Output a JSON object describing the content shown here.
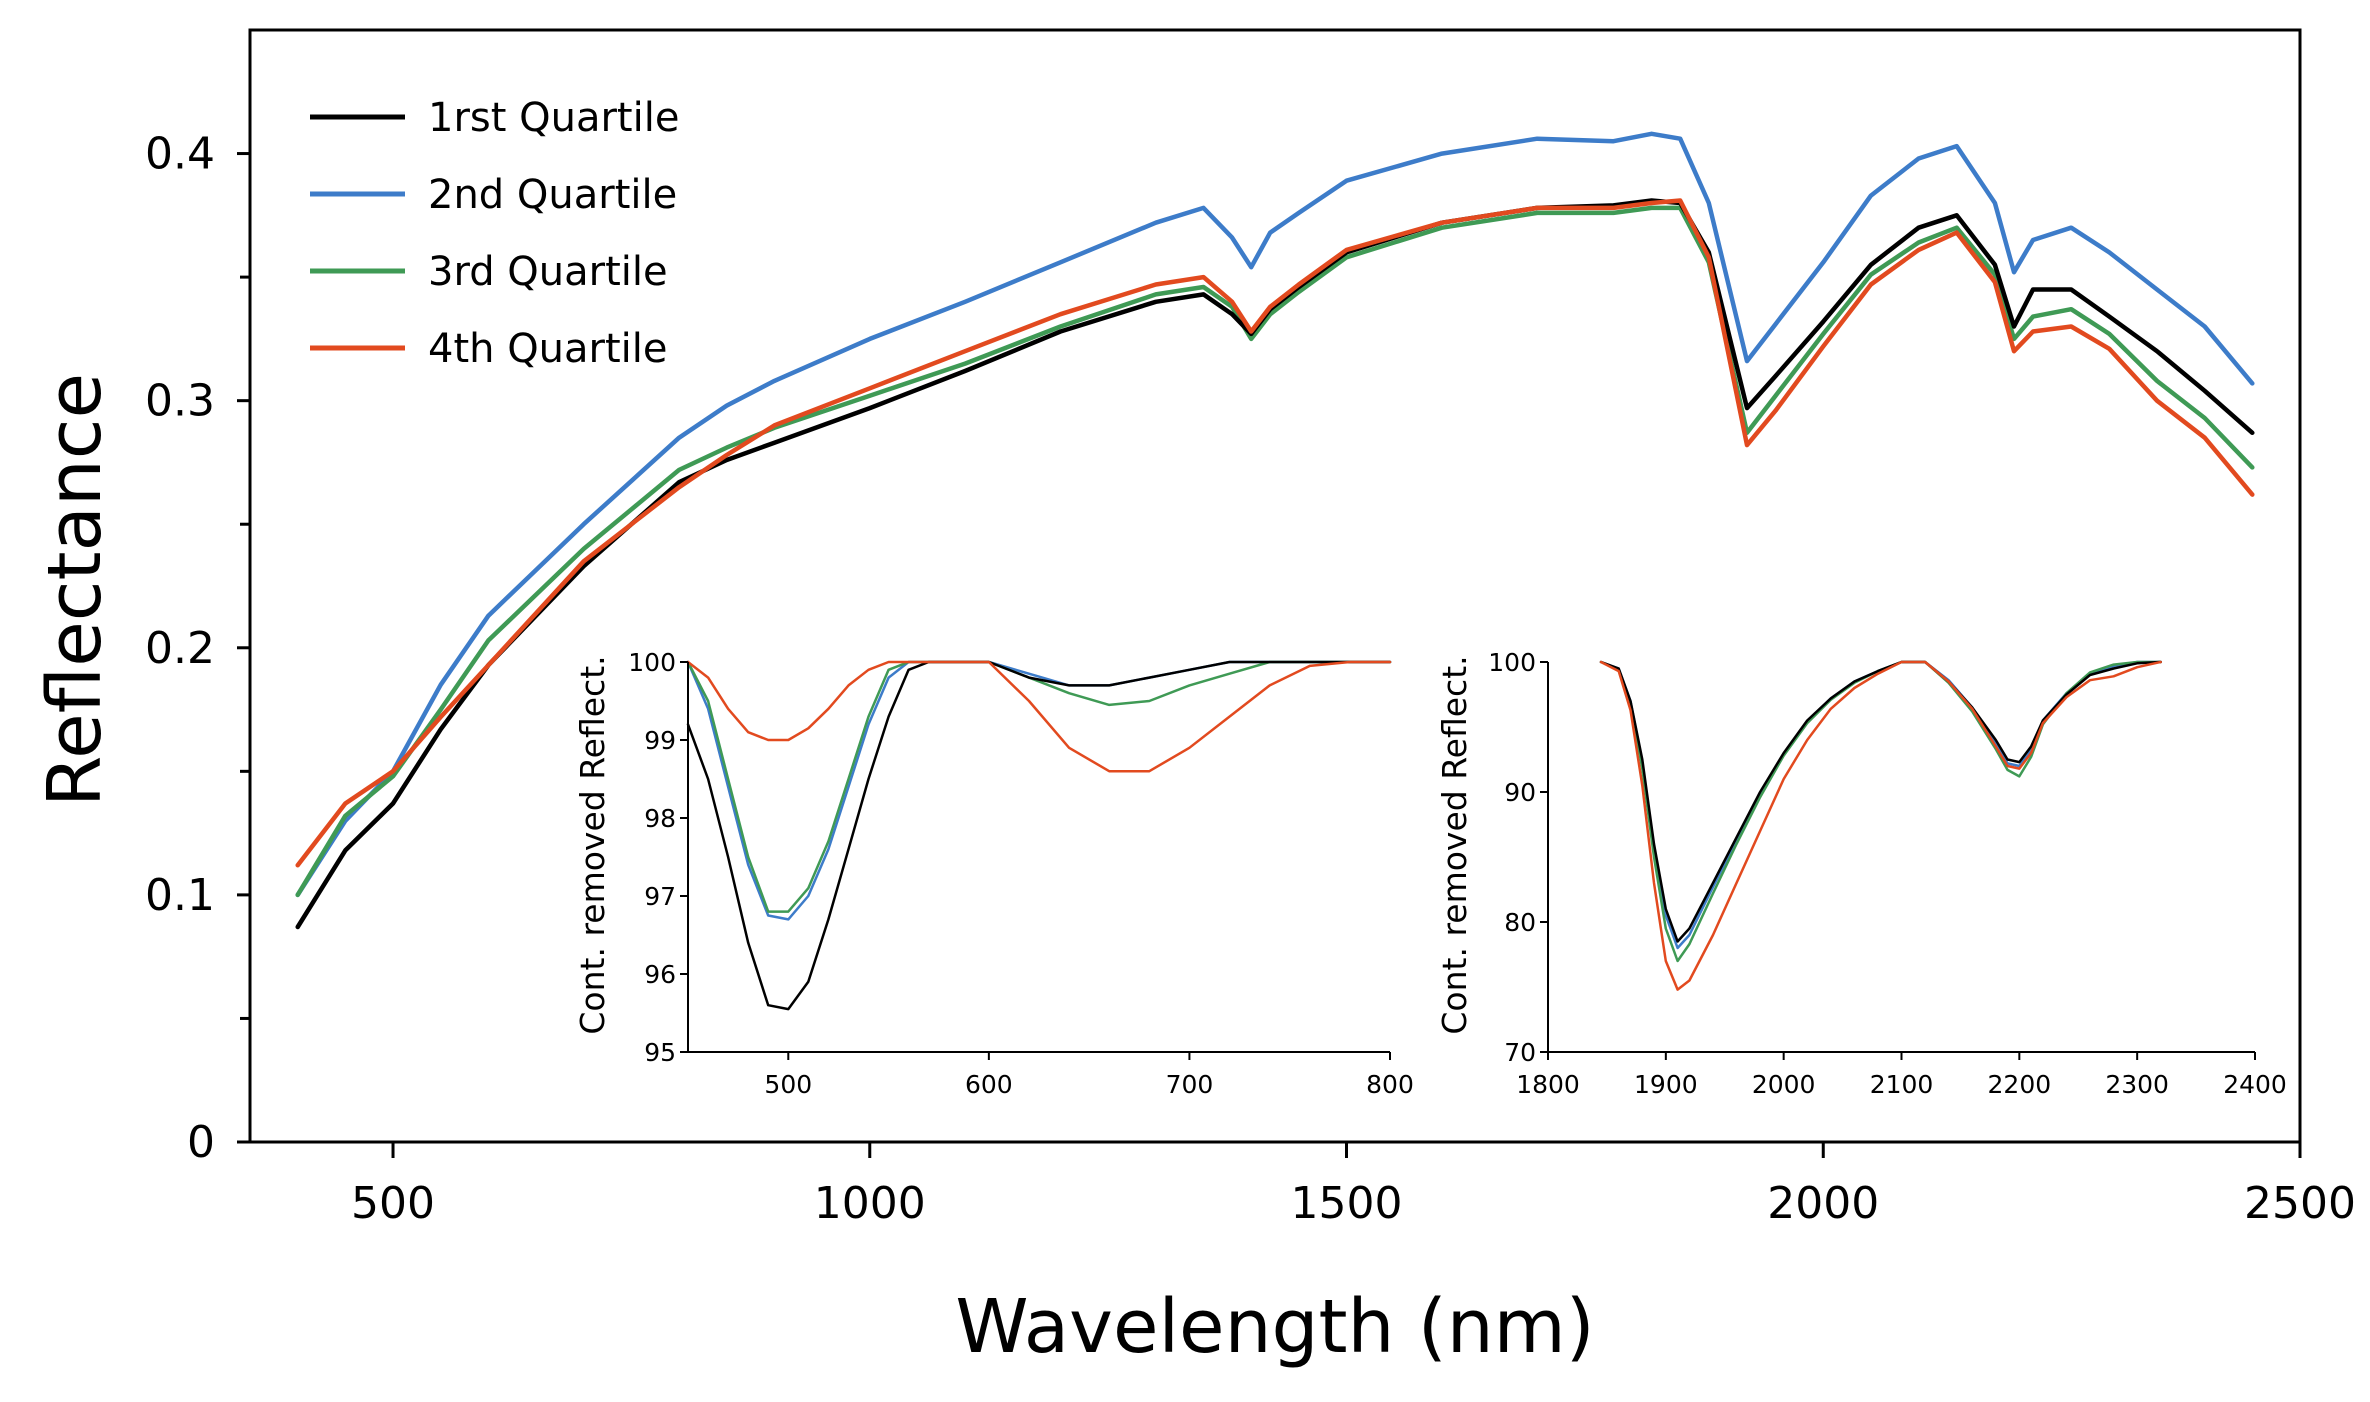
{
  "chart_data": [
    {
      "type": "line",
      "title": "",
      "xlabel": "Wavelength (nm)",
      "ylabel": "Reflectance",
      "xlim": [
        350,
        2500
      ],
      "ylim": [
        0,
        0.45
      ],
      "xticks": [
        "500",
        "1000",
        "1500",
        "2000",
        "2500"
      ],
      "yticks": [
        "0",
        "0.1",
        "0.2",
        "0.3",
        "0.4"
      ],
      "ytick_values": [
        0,
        0.1,
        0.2,
        0.3,
        0.4
      ],
      "ytick_minor": [
        0.05,
        0.15,
        0.25,
        0.35
      ],
      "legend_position": "top-left",
      "x": [
        400,
        450,
        500,
        550,
        600,
        700,
        800,
        850,
        900,
        1000,
        1100,
        1200,
        1300,
        1350,
        1380,
        1400,
        1420,
        1450,
        1500,
        1600,
        1700,
        1780,
        1820,
        1850,
        1880,
        1920,
        1950,
        2000,
        2050,
        2100,
        2140,
        2180,
        2200,
        2220,
        2260,
        2300,
        2350,
        2400,
        2450
      ],
      "series": [
        {
          "name": "1rst Quartile",
          "color": "#000000",
          "values": [
            0.087,
            0.118,
            0.137,
            0.167,
            0.193,
            0.233,
            0.267,
            0.276,
            0.283,
            0.297,
            0.312,
            0.328,
            0.34,
            0.343,
            0.335,
            0.327,
            0.337,
            0.346,
            0.36,
            0.372,
            0.378,
            0.379,
            0.381,
            0.38,
            0.36,
            0.297,
            0.31,
            0.332,
            0.355,
            0.37,
            0.375,
            0.355,
            0.33,
            0.345,
            0.345,
            0.334,
            0.32,
            0.304,
            0.287
          ]
        },
        {
          "name": "2nd Quartile",
          "color": "#3d7cc9",
          "values": [
            0.1,
            0.13,
            0.15,
            0.185,
            0.213,
            0.25,
            0.285,
            0.298,
            0.308,
            0.325,
            0.34,
            0.356,
            0.372,
            0.378,
            0.366,
            0.354,
            0.368,
            0.376,
            0.389,
            0.4,
            0.406,
            0.405,
            0.408,
            0.406,
            0.38,
            0.316,
            0.331,
            0.356,
            0.383,
            0.398,
            0.403,
            0.38,
            0.352,
            0.365,
            0.37,
            0.36,
            0.345,
            0.33,
            0.307
          ]
        },
        {
          "name": "3rd Quartile",
          "color": "#3f9a55",
          "values": [
            0.1,
            0.132,
            0.148,
            0.175,
            0.203,
            0.24,
            0.272,
            0.281,
            0.289,
            0.302,
            0.315,
            0.33,
            0.343,
            0.346,
            0.338,
            0.325,
            0.335,
            0.344,
            0.358,
            0.37,
            0.376,
            0.376,
            0.378,
            0.378,
            0.356,
            0.287,
            0.302,
            0.327,
            0.351,
            0.364,
            0.37,
            0.351,
            0.325,
            0.334,
            0.337,
            0.327,
            0.308,
            0.293,
            0.273
          ]
        },
        {
          "name": "4th Quartile",
          "color": "#e24a1f",
          "values": [
            0.112,
            0.137,
            0.15,
            0.172,
            0.193,
            0.235,
            0.265,
            0.278,
            0.29,
            0.305,
            0.32,
            0.335,
            0.347,
            0.35,
            0.34,
            0.328,
            0.338,
            0.347,
            0.361,
            0.372,
            0.378,
            0.378,
            0.38,
            0.381,
            0.358,
            0.282,
            0.296,
            0.322,
            0.347,
            0.361,
            0.368,
            0.348,
            0.32,
            0.328,
            0.33,
            0.321,
            0.3,
            0.285,
            0.262
          ]
        }
      ]
    },
    {
      "type": "line",
      "title": "",
      "xlabel": "",
      "ylabel": "Cont. removed Reflect.",
      "xlim": [
        450,
        800
      ],
      "ylim": [
        95,
        100
      ],
      "xticks": [
        "500",
        "600",
        "700",
        "800"
      ],
      "xtick_values": [
        500,
        600,
        700,
        800
      ],
      "yticks": [
        "95",
        "96",
        "97",
        "98",
        "99",
        "100"
      ],
      "ytick_values": [
        95,
        96,
        97,
        98,
        99,
        100
      ],
      "x": [
        450,
        460,
        470,
        480,
        490,
        500,
        510,
        520,
        530,
        540,
        550,
        560,
        570,
        580,
        600,
        620,
        640,
        660,
        680,
        700,
        720,
        740,
        760,
        780,
        800
      ],
      "series": [
        {
          "name": "1rst Quartile",
          "color": "#000000",
          "values": [
            99.2,
            98.5,
            97.5,
            96.4,
            95.6,
            95.55,
            95.9,
            96.7,
            97.6,
            98.5,
            99.3,
            99.9,
            100,
            100,
            100,
            99.8,
            99.7,
            99.7,
            99.8,
            99.9,
            100,
            100,
            100,
            100,
            100
          ]
        },
        {
          "name": "2nd Quartile",
          "color": "#3d7cc9",
          "values": [
            100,
            99.4,
            98.4,
            97.4,
            96.75,
            96.7,
            97.0,
            97.6,
            98.4,
            99.2,
            99.8,
            100,
            100,
            100,
            100,
            99.85,
            99.7,
            99.7,
            99.8,
            99.9,
            100,
            100,
            100,
            100,
            100
          ]
        },
        {
          "name": "3rd Quartile",
          "color": "#3f9a55",
          "values": [
            100,
            99.5,
            98.5,
            97.5,
            96.8,
            96.8,
            97.1,
            97.7,
            98.5,
            99.3,
            99.9,
            100,
            100,
            100,
            100,
            99.8,
            99.6,
            99.45,
            99.5,
            99.7,
            99.85,
            100,
            100,
            100,
            100
          ]
        },
        {
          "name": "4th Quartile",
          "color": "#e24a1f",
          "values": [
            100,
            99.8,
            99.4,
            99.1,
            99.0,
            99.0,
            99.15,
            99.4,
            99.7,
            99.9,
            100,
            100,
            100,
            100,
            100,
            99.5,
            98.9,
            98.6,
            98.6,
            98.9,
            99.3,
            99.7,
            99.95,
            100,
            100
          ]
        }
      ]
    },
    {
      "type": "line",
      "title": "",
      "xlabel": "",
      "ylabel": "Cont. removed Reflect.",
      "xlim": [
        1800,
        2400
      ],
      "ylim": [
        70,
        100
      ],
      "xticks": [
        "1800",
        "1900",
        "2000",
        "2100",
        "2200",
        "2300",
        "2400"
      ],
      "xtick_values": [
        1800,
        1900,
        2000,
        2100,
        2200,
        2300,
        2400
      ],
      "yticks": [
        "70",
        "80",
        "90",
        "100"
      ],
      "ytick_values": [
        70,
        80,
        90,
        100
      ],
      "x": [
        1845,
        1860,
        1870,
        1880,
        1890,
        1900,
        1910,
        1920,
        1940,
        1960,
        1980,
        2000,
        2020,
        2040,
        2060,
        2080,
        2100,
        2120,
        2140,
        2160,
        2180,
        2190,
        2200,
        2210,
        2220,
        2240,
        2260,
        2280,
        2300,
        2320
      ],
      "series": [
        {
          "name": "1rst Quartile",
          "color": "#000000",
          "values": [
            100,
            99.5,
            97.0,
            92.5,
            86.0,
            81.0,
            78.5,
            79.5,
            83.0,
            86.5,
            90.0,
            93.0,
            95.5,
            97.2,
            98.5,
            99.3,
            100,
            100,
            98.5,
            96.5,
            94.0,
            92.5,
            92.3,
            93.5,
            95.5,
            97.5,
            99.0,
            99.5,
            99.9,
            100
          ]
        },
        {
          "name": "2nd Quartile",
          "color": "#3d7cc9",
          "values": [
            100,
            99.5,
            97.0,
            92.3,
            85.8,
            80.5,
            78.0,
            79.0,
            82.7,
            86.3,
            89.8,
            92.9,
            95.4,
            97.2,
            98.5,
            99.3,
            100,
            100,
            98.6,
            96.5,
            93.8,
            92.2,
            92.0,
            93.3,
            95.5,
            97.6,
            99.1,
            99.7,
            100,
            100
          ]
        },
        {
          "name": "3rd Quartile",
          "color": "#3f9a55",
          "values": [
            100,
            99.4,
            96.8,
            91.8,
            85.0,
            79.5,
            77.0,
            78.3,
            82.2,
            86.0,
            89.6,
            92.8,
            95.3,
            97.1,
            98.4,
            99.3,
            100,
            100,
            98.4,
            96.2,
            93.3,
            91.7,
            91.2,
            92.7,
            95.2,
            97.6,
            99.2,
            99.8,
            100,
            100
          ]
        },
        {
          "name": "4th Quartile",
          "color": "#e24a1f",
          "values": [
            100,
            99.3,
            96.3,
            90.5,
            83.0,
            77.0,
            74.8,
            75.5,
            79.0,
            83.0,
            87.0,
            91.0,
            94.0,
            96.4,
            98.0,
            99.1,
            100,
            100,
            98.5,
            96.4,
            93.5,
            92.0,
            91.8,
            93.0,
            95.3,
            97.3,
            98.6,
            98.9,
            99.6,
            100
          ]
        }
      ]
    }
  ]
}
